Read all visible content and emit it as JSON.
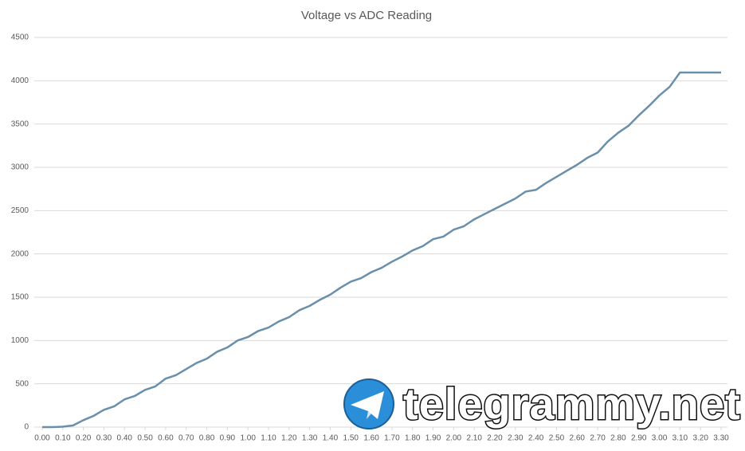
{
  "chart_data": {
    "type": "line",
    "title": "Voltage vs ADC Reading",
    "x": [
      0,
      0.05,
      0.1,
      0.15,
      0.2,
      0.25,
      0.3,
      0.35,
      0.4,
      0.45,
      0.5,
      0.55,
      0.6,
      0.65,
      0.7,
      0.75,
      0.8,
      0.85,
      0.9,
      0.95,
      1,
      1.05,
      1.1,
      1.15,
      1.2,
      1.25,
      1.3,
      1.35,
      1.4,
      1.45,
      1.5,
      1.55,
      1.6,
      1.65,
      1.7,
      1.75,
      1.8,
      1.85,
      1.9,
      1.95,
      2,
      2.05,
      2.1,
      2.15,
      2.2,
      2.25,
      2.3,
      2.35,
      2.4,
      2.45,
      2.5,
      2.55,
      2.6,
      2.65,
      2.7,
      2.75,
      2.8,
      2.85,
      2.9,
      2.95,
      3,
      3.05,
      3.1,
      3.15,
      3.2,
      3.25,
      3.3
    ],
    "values": [
      0,
      0,
      5,
      20,
      80,
      130,
      200,
      240,
      320,
      360,
      430,
      470,
      560,
      600,
      670,
      740,
      790,
      870,
      920,
      1000,
      1040,
      1110,
      1150,
      1220,
      1270,
      1350,
      1400,
      1470,
      1530,
      1610,
      1680,
      1720,
      1790,
      1840,
      1910,
      1970,
      2040,
      2090,
      2170,
      2200,
      2280,
      2320,
      2400,
      2460,
      2520,
      2580,
      2640,
      2720,
      2740,
      2820,
      2890,
      2960,
      3030,
      3110,
      3170,
      3300,
      3400,
      3480,
      3600,
      3710,
      3830,
      3930,
      4095,
      4095,
      4095,
      4095,
      4095
    ],
    "color": "#6a8fab",
    "xlim": [
      0,
      3.3
    ],
    "xticks": [
      {
        "value": 0,
        "label": "0.00"
      },
      {
        "value": 0.1,
        "label": "0.10"
      },
      {
        "value": 0.2,
        "label": "0.20"
      },
      {
        "value": 0.3,
        "label": "0.30"
      },
      {
        "value": 0.4,
        "label": "0.40"
      },
      {
        "value": 0.5,
        "label": "0.50"
      },
      {
        "value": 0.6,
        "label": "0.60"
      },
      {
        "value": 0.7,
        "label": "0.70"
      },
      {
        "value": 0.8,
        "label": "0.80"
      },
      {
        "value": 0.9,
        "label": "0.90"
      },
      {
        "value": 1,
        "label": "1.00"
      },
      {
        "value": 1.1,
        "label": "1.10"
      },
      {
        "value": 1.2,
        "label": "1.20"
      },
      {
        "value": 1.3,
        "label": "1.30"
      },
      {
        "value": 1.4,
        "label": "1.40"
      },
      {
        "value": 1.5,
        "label": "1.50"
      },
      {
        "value": 1.6,
        "label": "1.60"
      },
      {
        "value": 1.7,
        "label": "1.70"
      },
      {
        "value": 1.8,
        "label": "1.80"
      },
      {
        "value": 1.9,
        "label": "1.90"
      },
      {
        "value": 2,
        "label": "2.00"
      },
      {
        "value": 2.1,
        "label": "2.10"
      },
      {
        "value": 2.2,
        "label": "2.20"
      },
      {
        "value": 2.3,
        "label": "2.30"
      },
      {
        "value": 2.4,
        "label": "2.40"
      },
      {
        "value": 2.5,
        "label": "2.50"
      },
      {
        "value": 2.6,
        "label": "2.60"
      },
      {
        "value": 2.7,
        "label": "2.70"
      },
      {
        "value": 2.8,
        "label": "2.80"
      },
      {
        "value": 2.9,
        "label": "2.90"
      },
      {
        "value": 3,
        "label": "3.00"
      },
      {
        "value": 3.1,
        "label": "3.10"
      },
      {
        "value": 3.2,
        "label": "3.20"
      },
      {
        "value": 3.3,
        "label": "3.30"
      }
    ],
    "ylim": [
      0,
      4500
    ],
    "yticks": [
      0,
      500,
      1000,
      1500,
      2000,
      2500,
      3000,
      3500,
      4000,
      4500
    ],
    "grid": true
  },
  "watermark": "telegrammy.net"
}
